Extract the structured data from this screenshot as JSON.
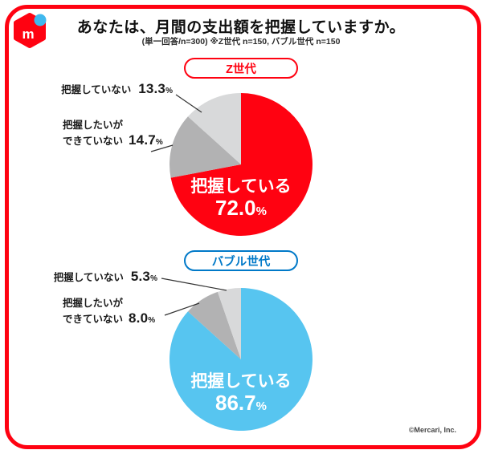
{
  "page": {
    "title": "あなたは、月間の支出額を把握していますか。",
    "subtitle": "(単一回答/n=300) ※Z世代 n=150, バブル世代 n=150",
    "copyright": "©Mercari, Inc.",
    "frame_color": "#ff0211"
  },
  "logo": {
    "letter": "m",
    "box_color": "#ff0211",
    "dot_color": "#3fb8ee"
  },
  "chart_data": [
    {
      "type": "pie",
      "group_label": "Z世代",
      "group_color": "#ff0211",
      "categories": [
        "把握している",
        "把握したいができていない",
        "把握していない"
      ],
      "values": [
        72.0,
        14.7,
        13.3
      ],
      "colors": [
        "#ff0211",
        "#b2b2b3",
        "#d8d9da"
      ],
      "start_angle_deg": 0,
      "direction": "clockwise",
      "inside_label": {
        "text": "把握している",
        "value": "72.0",
        "unit": "%"
      },
      "callouts": [
        {
          "label": "把握していない",
          "value": "13.3",
          "unit": "%"
        },
        {
          "label_line1": "把握したいが",
          "label_line2": "できていない",
          "value": "14.7",
          "unit": "%"
        }
      ]
    },
    {
      "type": "pie",
      "group_label": "バブル世代",
      "group_color": "#0079c8",
      "categories": [
        "把握している",
        "把握したいができていない",
        "把握していない"
      ],
      "values": [
        86.7,
        8.0,
        5.3
      ],
      "colors": [
        "#57c5f0",
        "#b2b2b3",
        "#d8d9da"
      ],
      "start_angle_deg": 0,
      "direction": "clockwise",
      "inside_label": {
        "text": "把握している",
        "value": "86.7",
        "unit": "%"
      },
      "callouts": [
        {
          "label": "把握していない",
          "value": "5.3",
          "unit": "%"
        },
        {
          "label_line1": "把握したいが",
          "label_line2": "できていない",
          "value": "8.0",
          "unit": "%"
        }
      ]
    }
  ]
}
